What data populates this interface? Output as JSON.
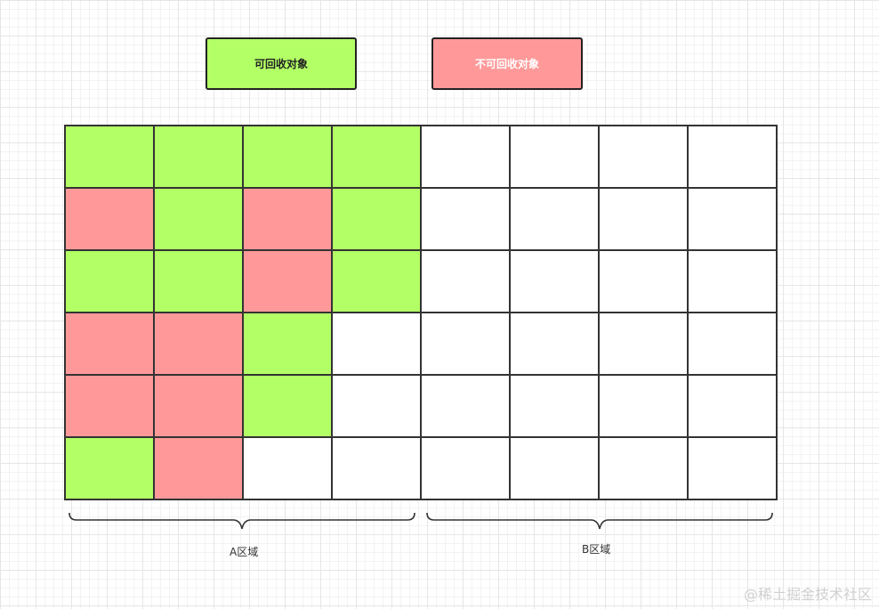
{
  "legend": {
    "reclaimable": "可回收对象",
    "non_reclaimable": "不可回收对象"
  },
  "colors": {
    "reclaimable": "#b3ff66",
    "non_reclaimable": "#ff9999",
    "empty": "#ffffff"
  },
  "grid": {
    "rows": [
      [
        "g",
        "g",
        "g",
        "g",
        "w",
        "w",
        "w",
        "w"
      ],
      [
        "r",
        "g",
        "r",
        "g",
        "w",
        "w",
        "w",
        "w"
      ],
      [
        "g",
        "g",
        "r",
        "g",
        "w",
        "w",
        "w",
        "w"
      ],
      [
        "r",
        "r",
        "g",
        "w",
        "w",
        "w",
        "w",
        "w"
      ],
      [
        "r",
        "r",
        "g",
        "w",
        "w",
        "w",
        "w",
        "w"
      ],
      [
        "g",
        "r",
        "w",
        "w",
        "w",
        "w",
        "w",
        "w"
      ]
    ]
  },
  "regions": {
    "a_label": "A区域",
    "b_label": "B区域"
  },
  "watermark": "@稀土掘金技术社区"
}
